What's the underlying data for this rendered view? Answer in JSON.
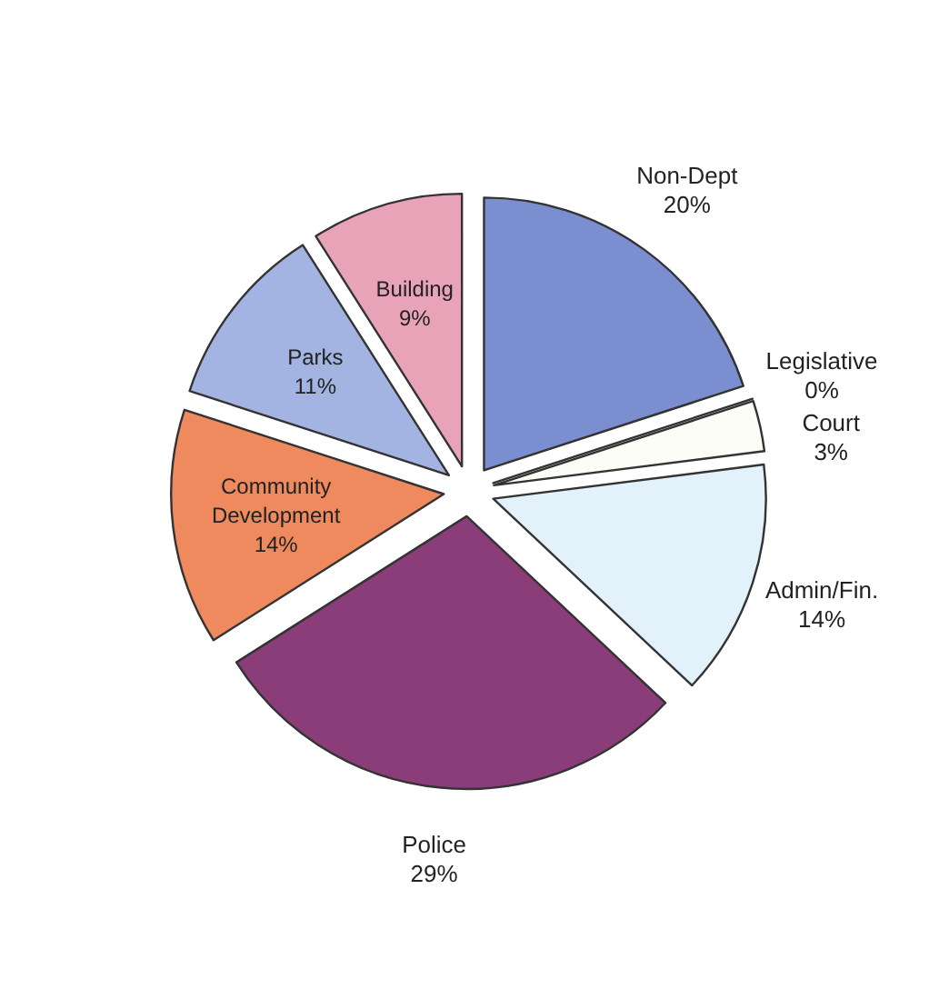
{
  "chart_data": {
    "type": "pie",
    "categories": [
      "Non-Dept",
      "Legislative",
      "Court",
      "Admin/Fin.",
      "Police",
      "Community Development",
      "Parks",
      "Building"
    ],
    "values": [
      20,
      0,
      3,
      14,
      29,
      14,
      11,
      9
    ],
    "colors": [
      "#7b8fd0",
      "#ffffff",
      "#fdfdf8",
      "#e2f1fa",
      "#8a3d78",
      "#ee8a5e",
      "#a4b4e2",
      "#e9a3b9"
    ],
    "value_labels": [
      "20%",
      "0%",
      "3%",
      "14%",
      "29%",
      "14%",
      "11%",
      "9%"
    ]
  }
}
